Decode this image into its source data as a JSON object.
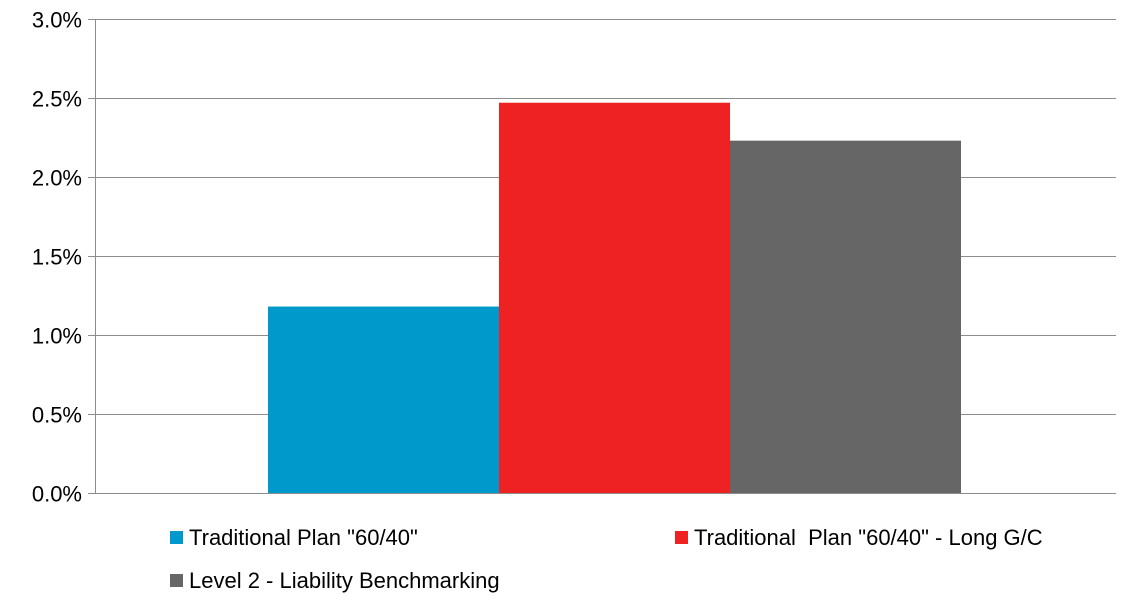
{
  "chart_data": {
    "type": "bar",
    "categories": [
      ""
    ],
    "series": [
      {
        "name": "Traditional Plan \"60/40\"",
        "values": [
          1.18
        ],
        "color": "#0099cc"
      },
      {
        "name": "Traditional  Plan \"60/40\" - Long G/C",
        "values": [
          2.47
        ],
        "color": "#ee2222"
      },
      {
        "name": "Level 2 - Liability Benchmarking",
        "values": [
          2.23
        ],
        "color": "#666666"
      }
    ],
    "y_ticks": [
      "0.0%",
      "0.5%",
      "1.0%",
      "1.5%",
      "2.0%",
      "2.5%",
      "3.0%"
    ],
    "ylim": [
      0,
      3.0
    ],
    "grid": true,
    "legend_position": "bottom",
    "gridline_color": "#8c8c8c",
    "axis_color": "#8c8c8c"
  }
}
